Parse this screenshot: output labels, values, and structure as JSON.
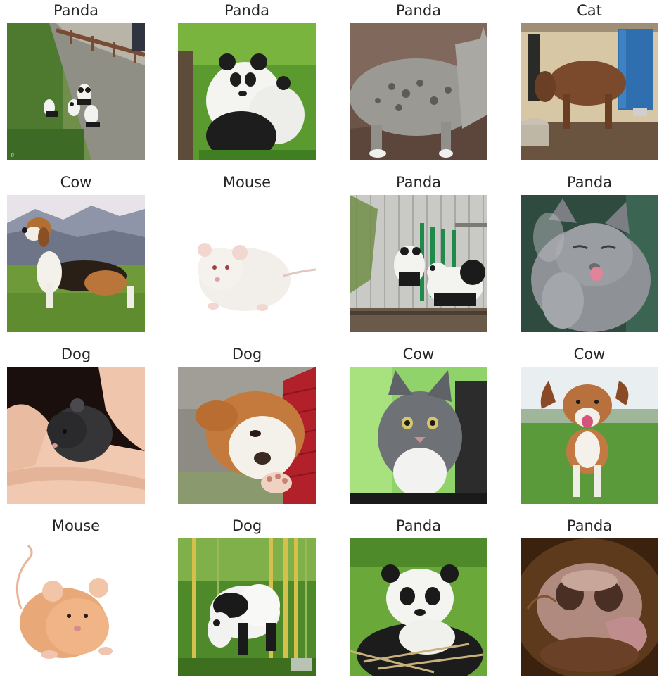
{
  "figure": {
    "tiles": [
      {
        "label": "Panda",
        "scene": "pandas-by-wall"
      },
      {
        "label": "Panda",
        "scene": "two-pandas-grass"
      },
      {
        "label": "Panda",
        "scene": "tabby-cat-walking"
      },
      {
        "label": "Cat",
        "scene": "cow-by-blue-door"
      },
      {
        "label": "Cow",
        "scene": "beagle-mountains"
      },
      {
        "label": "Mouse",
        "scene": "white-mouse"
      },
      {
        "label": "Panda",
        "scene": "pandas-fence"
      },
      {
        "label": "Panda",
        "scene": "grey-cat-licking"
      },
      {
        "label": "Dog",
        "scene": "mouse-in-hands"
      },
      {
        "label": "Dog",
        "scene": "puppy-on-red-blanket"
      },
      {
        "label": "Cow",
        "scene": "grey-cat-green-wall"
      },
      {
        "label": "Cow",
        "scene": "beagle-running"
      },
      {
        "label": "Mouse",
        "scene": "orange-mouse"
      },
      {
        "label": "Dog",
        "scene": "panda-bamboo"
      },
      {
        "label": "Panda",
        "scene": "panda-eating-bamboo"
      },
      {
        "label": "Panda",
        "scene": "cow-nose-closeup"
      }
    ]
  }
}
